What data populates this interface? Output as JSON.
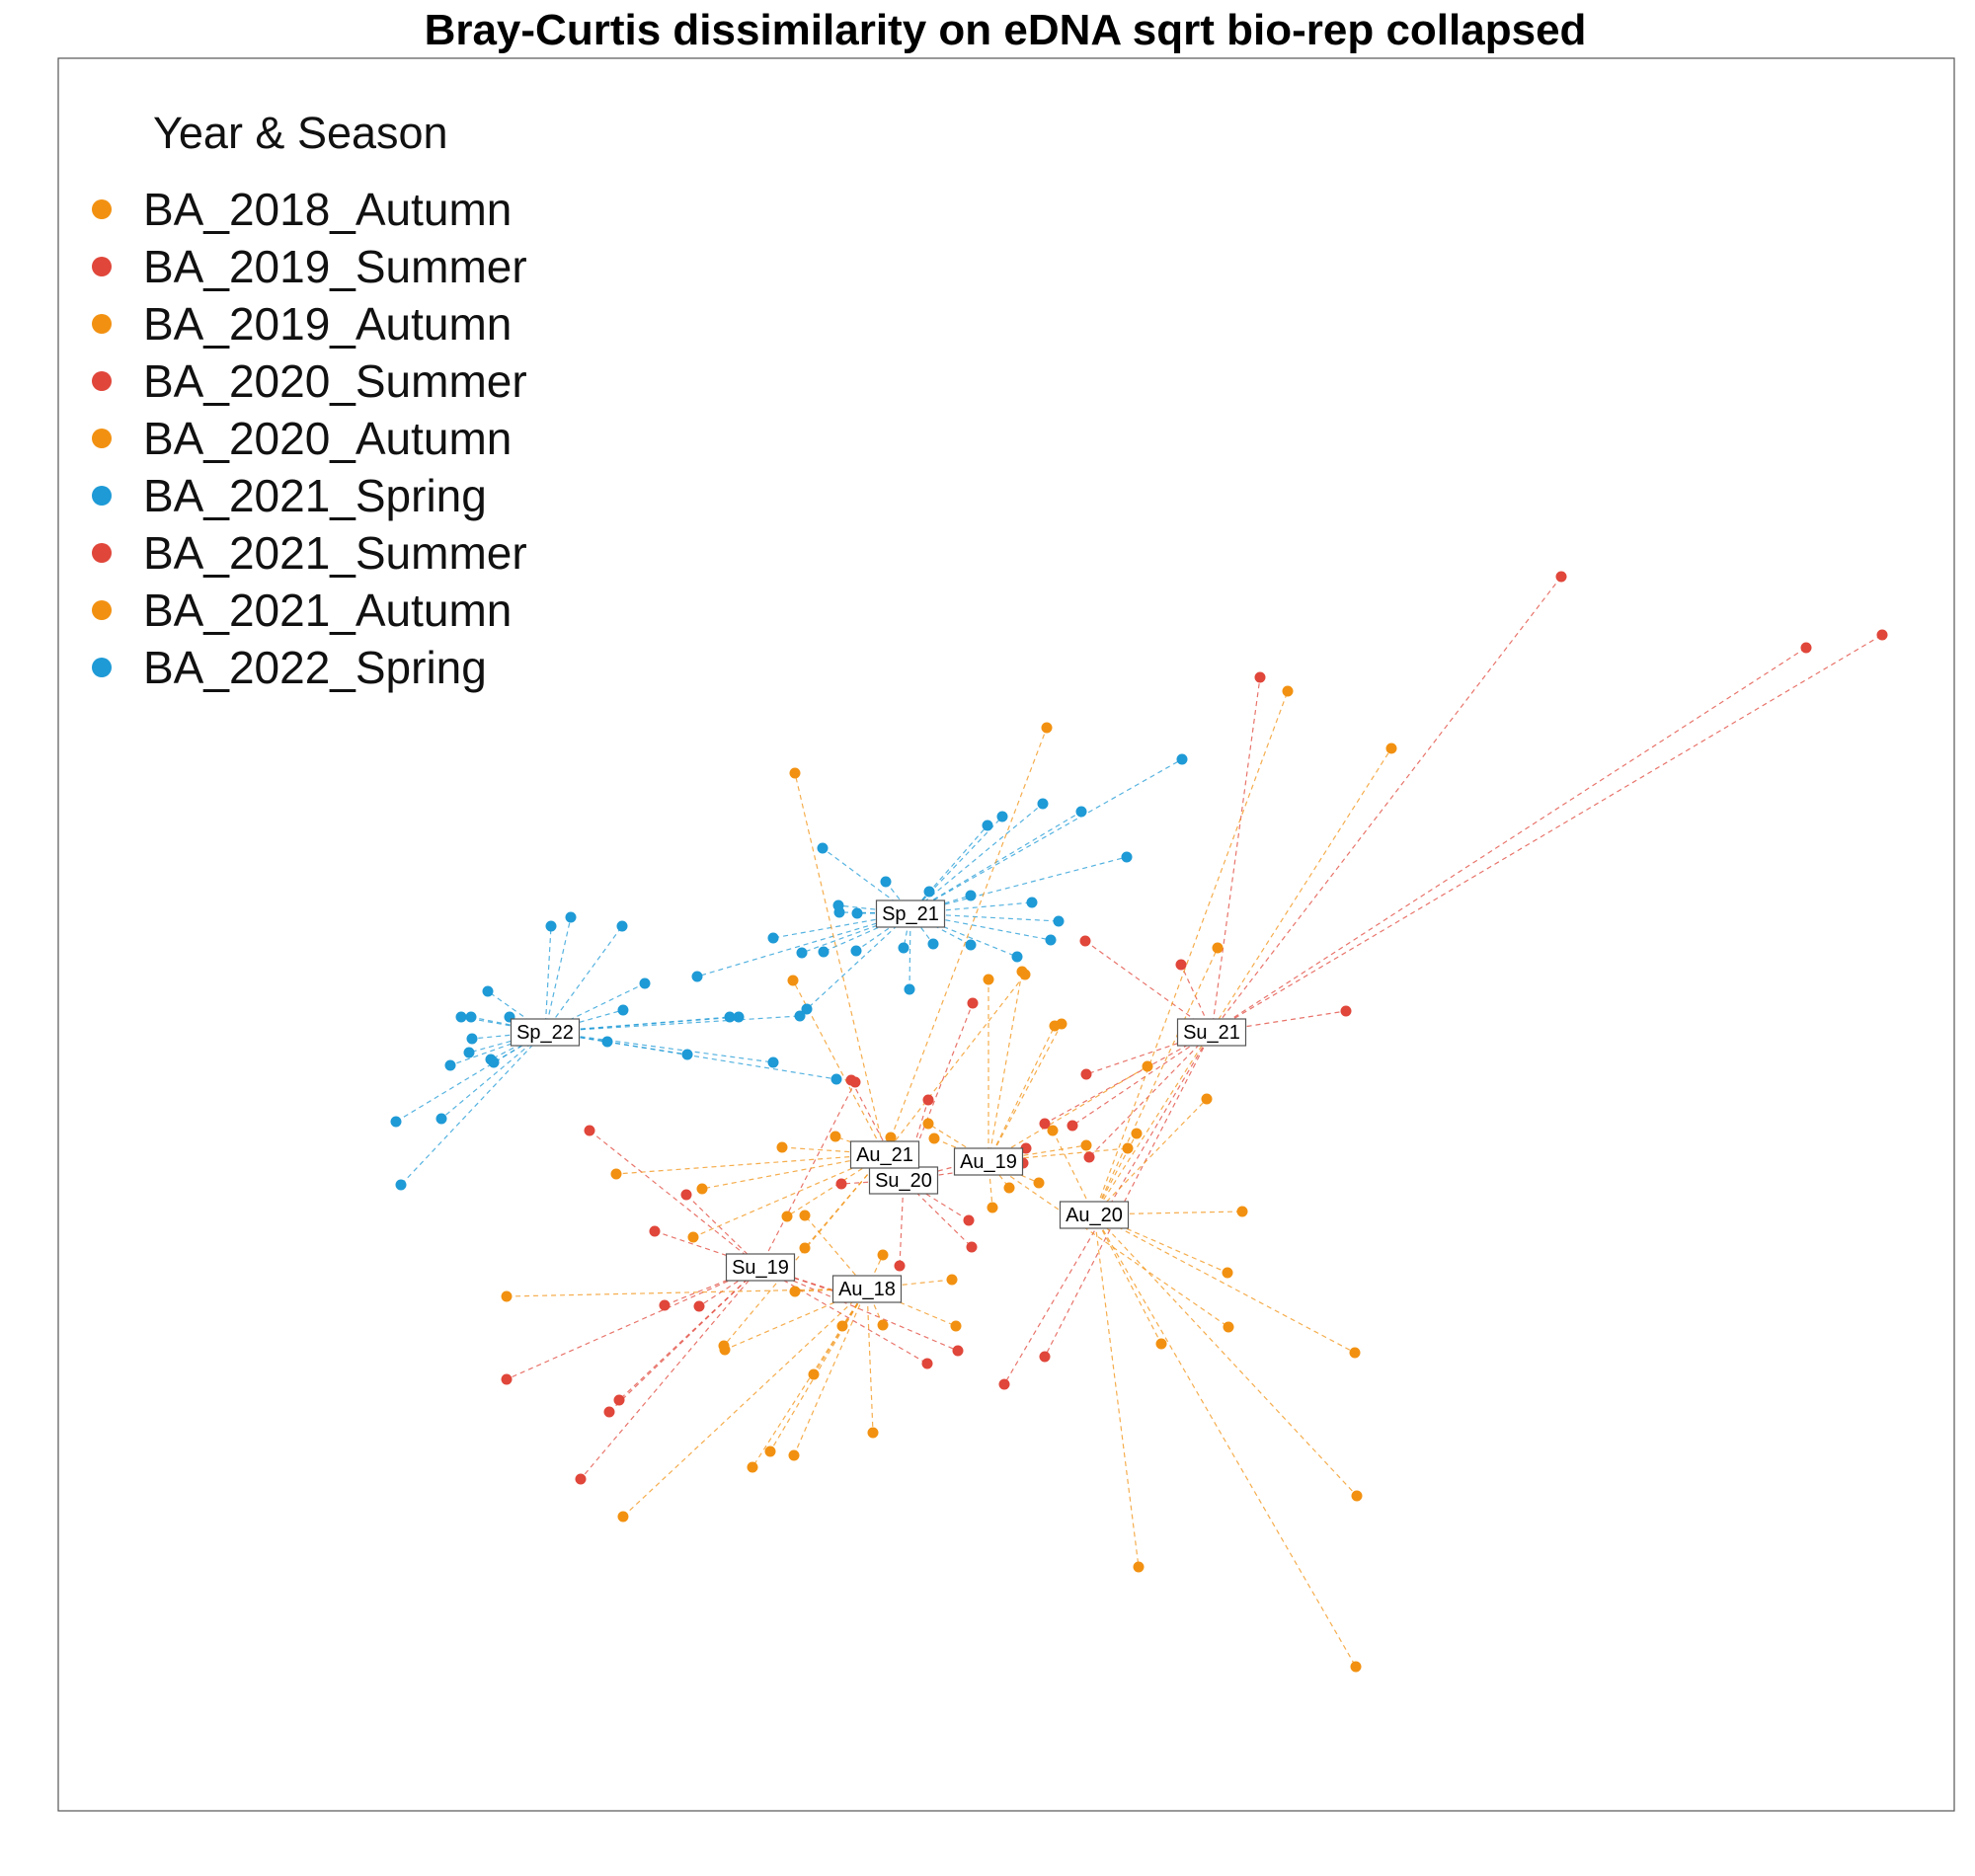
{
  "chart_data": {
    "type": "scatter",
    "title": "Bray-Curtis dissimilarity on eDNA sqrt bio-rep collapsed",
    "legend": {
      "title": "Year & Season",
      "placement": "top-left",
      "entries": [
        {
          "label": "BA_2018_Autumn",
          "color": "#f29111"
        },
        {
          "label": "BA_2019_Summer",
          "color": "#e0463a"
        },
        {
          "label": "BA_2019_Autumn",
          "color": "#f29111"
        },
        {
          "label": "BA_2020_Summer",
          "color": "#e0463a"
        },
        {
          "label": "BA_2020_Autumn",
          "color": "#f29111"
        },
        {
          "label": "BA_2021_Spring",
          "color": "#1e9ad6"
        },
        {
          "label": "BA_2021_Summer",
          "color": "#e0463a"
        },
        {
          "label": "BA_2021_Autumn",
          "color": "#f29111"
        },
        {
          "label": "BA_2022_Spring",
          "color": "#1e9ad6"
        }
      ]
    },
    "axes_shown": false,
    "grid": false,
    "groups": [
      {
        "name": "BA_2021_Spring",
        "label": "Sp_21",
        "color": "#1e9ad6",
        "centroid": [
          922,
          925
        ],
        "points": [
          [
            1197,
            769
          ],
          [
            1056,
            814
          ],
          [
            1015,
            827
          ],
          [
            1000,
            836
          ],
          [
            1095,
            822
          ],
          [
            1141,
            868
          ],
          [
            833,
            859
          ],
          [
            897,
            893
          ],
          [
            941,
            903
          ],
          [
            983,
            907
          ],
          [
            849,
            917
          ],
          [
            1072,
            933
          ],
          [
            1064,
            952
          ],
          [
            945,
            956
          ],
          [
            983,
            957
          ],
          [
            850,
            924
          ],
          [
            915,
            960
          ],
          [
            812,
            965
          ],
          [
            921,
            1002
          ],
          [
            868,
            925
          ],
          [
            1045,
            914
          ],
          [
            867,
            963
          ],
          [
            783,
            950
          ],
          [
            834,
            964
          ],
          [
            817,
            1022
          ],
          [
            706,
            989
          ],
          [
            1030,
            969
          ]
        ]
      },
      {
        "name": "BA_2022_Spring",
        "label": "Sp_22",
        "color": "#1e9ad6",
        "centroid": [
          552,
          1045
        ],
        "points": [
          [
            558,
            938
          ],
          [
            578,
            929
          ],
          [
            630,
            938
          ],
          [
            494,
            1004
          ],
          [
            653,
            996
          ],
          [
            467,
            1030
          ],
          [
            477,
            1030
          ],
          [
            516,
            1030
          ],
          [
            478,
            1052
          ],
          [
            475,
            1066
          ],
          [
            456,
            1079
          ],
          [
            497,
            1073
          ],
          [
            631,
            1023
          ],
          [
            615,
            1055
          ],
          [
            696,
            1068
          ],
          [
            739,
            1030
          ],
          [
            748,
            1030
          ],
          [
            447,
            1133
          ],
          [
            401,
            1136
          ],
          [
            406,
            1200
          ],
          [
            810,
            1029
          ],
          [
            783,
            1076
          ],
          [
            500,
            1076
          ],
          [
            847,
            1093
          ]
        ]
      },
      {
        "name": "BA_2021_Summer",
        "label": "Su_21",
        "color": "#e0463a",
        "centroid": [
          1227,
          1045
        ],
        "points": [
          [
            1581,
            584
          ],
          [
            1829,
            656
          ],
          [
            1906,
            643
          ],
          [
            1276,
            686
          ],
          [
            1196,
            977
          ],
          [
            1363,
            1024
          ],
          [
            1099,
            953
          ],
          [
            1100,
            1088
          ],
          [
            1058,
            1138
          ],
          [
            1086,
            1140
          ],
          [
            1103,
            1172
          ],
          [
            1058,
            1374
          ],
          [
            1017,
            1402
          ]
        ]
      },
      {
        "name": "BA_2019_Summer",
        "label": "Su_19",
        "color": "#e0463a",
        "centroid": [
          770,
          1283
        ],
        "points": [
          [
            597,
            1145
          ],
          [
            695,
            1210
          ],
          [
            663,
            1247
          ],
          [
            673,
            1322
          ],
          [
            708,
            1323
          ],
          [
            513,
            1397
          ],
          [
            627,
            1418
          ],
          [
            617,
            1430
          ],
          [
            588,
            1498
          ],
          [
            866,
            1096
          ],
          [
            854,
            1311
          ],
          [
            851,
            1309
          ],
          [
            939,
            1381
          ],
          [
            970,
            1368
          ]
        ]
      },
      {
        "name": "BA_2020_Summer",
        "label": "Su_20",
        "color": "#e0463a",
        "centroid": [
          915,
          1195
        ],
        "points": [
          [
            940,
            1114
          ],
          [
            985,
            1016
          ],
          [
            1039,
            1163
          ],
          [
            1036,
            1178
          ],
          [
            981,
            1236
          ],
          [
            984,
            1263
          ],
          [
            911,
            1282
          ],
          [
            852,
            1199
          ],
          [
            862,
            1094
          ]
        ]
      },
      {
        "name": "BA_2018_Autumn",
        "label": "Au_18",
        "color": "#f29111",
        "centroid": [
          878,
          1305
        ],
        "points": [
          [
            513,
            1313
          ],
          [
            734,
            1367
          ],
          [
            780,
            1470
          ],
          [
            804,
            1474
          ],
          [
            762,
            1486
          ],
          [
            824,
            1392
          ],
          [
            884,
            1451
          ],
          [
            853,
            1343
          ],
          [
            894,
            1342
          ],
          [
            894,
            1271
          ],
          [
            964,
            1296
          ],
          [
            968,
            1343
          ],
          [
            631,
            1536
          ],
          [
            805,
            1308
          ],
          [
            815,
            1231
          ]
        ]
      },
      {
        "name": "BA_2019_Autumn",
        "label": "Au_19",
        "color": "#f29111",
        "centroid": [
          1001,
          1176
        ],
        "points": [
          [
            1075,
            1037
          ],
          [
            1001,
            992
          ],
          [
            1035,
            984
          ],
          [
            1068,
            1039
          ],
          [
            1162,
            1080
          ],
          [
            1142,
            1163
          ],
          [
            1100,
            1160
          ],
          [
            1052,
            1198
          ],
          [
            1005,
            1223
          ],
          [
            946,
            1153
          ],
          [
            940,
            1138
          ],
          [
            1022,
            1203
          ],
          [
            1244,
            1344
          ]
        ]
      },
      {
        "name": "BA_2020_Autumn",
        "label": "Au_20",
        "color": "#f29111",
        "centroid": [
          1108,
          1230
        ],
        "points": [
          [
            1409,
            758
          ],
          [
            1304,
            700
          ],
          [
            1233,
            960
          ],
          [
            1222,
            1113
          ],
          [
            1258,
            1227
          ],
          [
            1243,
            1289
          ],
          [
            1372,
            1370
          ],
          [
            1176,
            1361
          ],
          [
            1153,
            1587
          ],
          [
            1374,
            1515
          ],
          [
            1373,
            1688
          ],
          [
            1066,
            1145
          ],
          [
            1151,
            1148
          ]
        ]
      },
      {
        "name": "BA_2021_Autumn",
        "label": "Au_21",
        "color": "#f29111",
        "centroid": [
          896,
          1169
        ],
        "points": [
          [
            1060,
            737
          ],
          [
            805,
            783
          ],
          [
            803,
            993
          ],
          [
            1038,
            987
          ],
          [
            792,
            1162
          ],
          [
            846,
            1151
          ],
          [
            624,
            1189
          ],
          [
            711,
            1204
          ],
          [
            702,
            1253
          ],
          [
            797,
            1232
          ],
          [
            815,
            1264
          ],
          [
            733,
            1363
          ],
          [
            902,
            1152
          ]
        ]
      }
    ]
  }
}
